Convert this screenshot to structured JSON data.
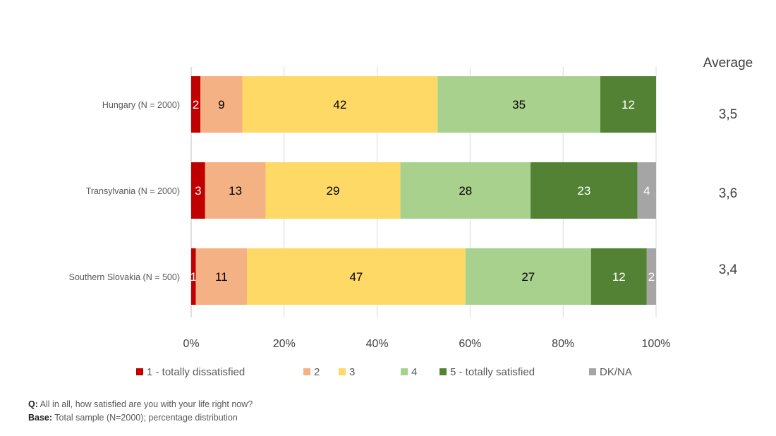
{
  "chart_data": {
    "type": "bar",
    "orientation": "horizontal",
    "stacked": "percent",
    "categories": [
      "Hungary (N = 2000)",
      "Transylvania (N = 2000)",
      "Southern Slovakia (N = 500)"
    ],
    "series": [
      {
        "name": "1 - totally dissatisfied",
        "color": "#c00000",
        "label_color": "#ffffff",
        "values": [
          2,
          3,
          1
        ]
      },
      {
        "name": "2",
        "color": "#f4b183",
        "label_color": "#000000",
        "values": [
          9,
          13,
          11
        ]
      },
      {
        "name": "3",
        "color": "#ffd966",
        "label_color": "#000000",
        "values": [
          42,
          29,
          47
        ]
      },
      {
        "name": "4",
        "color": "#a9d18e",
        "label_color": "#000000",
        "values": [
          35,
          28,
          27
        ]
      },
      {
        "name": "5 - totally satisfied",
        "color": "#548235",
        "label_color": "#ffffff",
        "values": [
          12,
          23,
          12
        ]
      },
      {
        "name": "DK/NA",
        "color": "#a5a5a5",
        "label_color": "#ffffff",
        "values": [
          0,
          4,
          2
        ]
      }
    ],
    "xlim": [
      0,
      100
    ],
    "xticks": [
      "0%",
      "20%",
      "40%",
      "60%",
      "80%",
      "100%"
    ],
    "grid": true,
    "legend": "bottom",
    "average_title": "Average",
    "averages": [
      "3,5",
      "3,6",
      "3,4"
    ]
  },
  "notes": {
    "q_label": "Q:",
    "q_text": " All in all, how satisfied are you with your life right now?",
    "base_label": "Base:",
    "base_text": " Total sample (N=2000); percentage distribution"
  }
}
